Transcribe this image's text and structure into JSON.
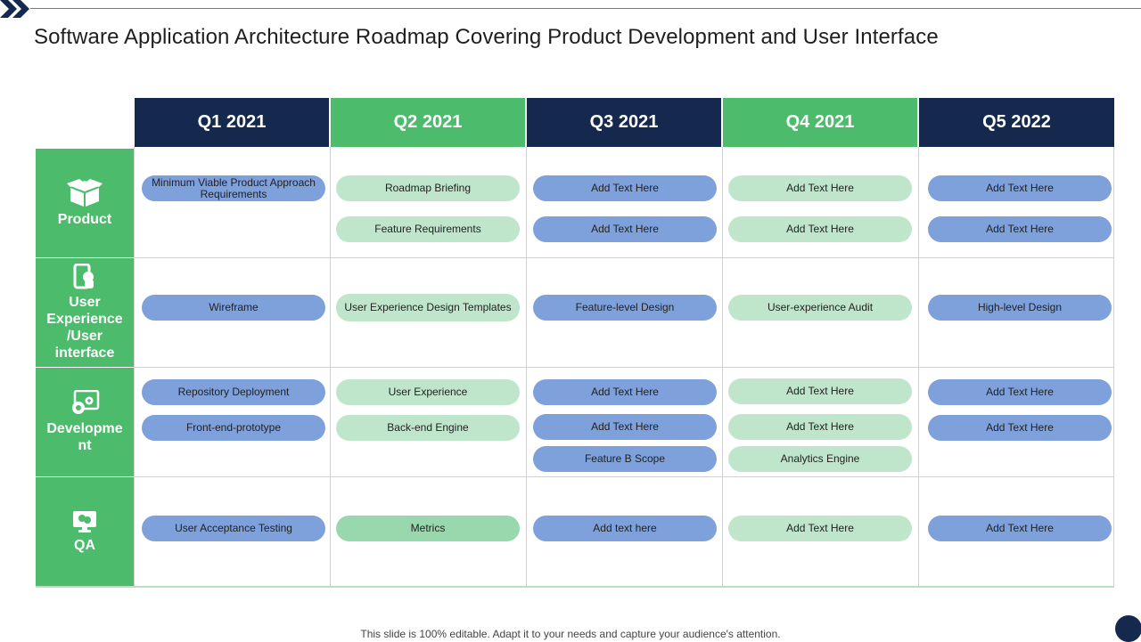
{
  "slide": {
    "title": "Software Application Architecture Roadmap Covering Product Development and User Interface",
    "footer": "This slide is 100% editable. Adapt it to your needs and capture your audience's attention.",
    "colors": {
      "navy": "#15284d",
      "green": "#4cbb6c",
      "pill_blue": "#7ea0db",
      "pill_light_green": "#bfe6cb",
      "pill_mid_green": "#99d8ad"
    }
  },
  "quarters": [
    "Q1 2021",
    "Q2 2021",
    "Q3 2021",
    "Q4 2021",
    "Q5 2022"
  ],
  "rows": [
    {
      "label": "Product",
      "icon": "box-icon"
    },
    {
      "label": "User Experience /User interface",
      "icon": "mobile-touch-icon"
    },
    {
      "label": "Developme nt",
      "icon": "gears-screen-icon"
    },
    {
      "label": "QA",
      "icon": "monitor-chat-icon"
    }
  ],
  "cells": {
    "product": {
      "q1": [
        "Minimum Viable Product Approach Requirements"
      ],
      "q2": [
        "Roadmap Briefing",
        "Feature Requirements"
      ],
      "q3": [
        "Add Text Here",
        "Add Text Here"
      ],
      "q4": [
        "Add Text Here",
        "Add Text Here"
      ],
      "q5": [
        "Add Text Here",
        "Add Text Here"
      ]
    },
    "ux": {
      "q1": [
        "Wireframe"
      ],
      "q2": [
        "User Experience Design Templates"
      ],
      "q3": [
        "Feature-level Design"
      ],
      "q4": [
        "User-experience Audit"
      ],
      "q5": [
        "High-level Design"
      ]
    },
    "dev": {
      "q1": [
        "Repository Deployment",
        "Front-end-prototype"
      ],
      "q2": [
        "User Experience",
        "Back-end Engine"
      ],
      "q3": [
        "Add Text Here",
        "Add Text Here",
        "Feature B Scope"
      ],
      "q4": [
        "Add Text Here",
        "Add Text Here",
        "Analytics Engine"
      ],
      "q5": [
        "Add Text Here",
        "Add Text Here"
      ]
    },
    "qa": {
      "q1": [
        "User Acceptance Testing"
      ],
      "q2": [
        "Metrics"
      ],
      "q3": [
        "Add text here"
      ],
      "q4": [
        "Add Text Here"
      ],
      "q5": [
        "Add Text Here"
      ]
    }
  }
}
